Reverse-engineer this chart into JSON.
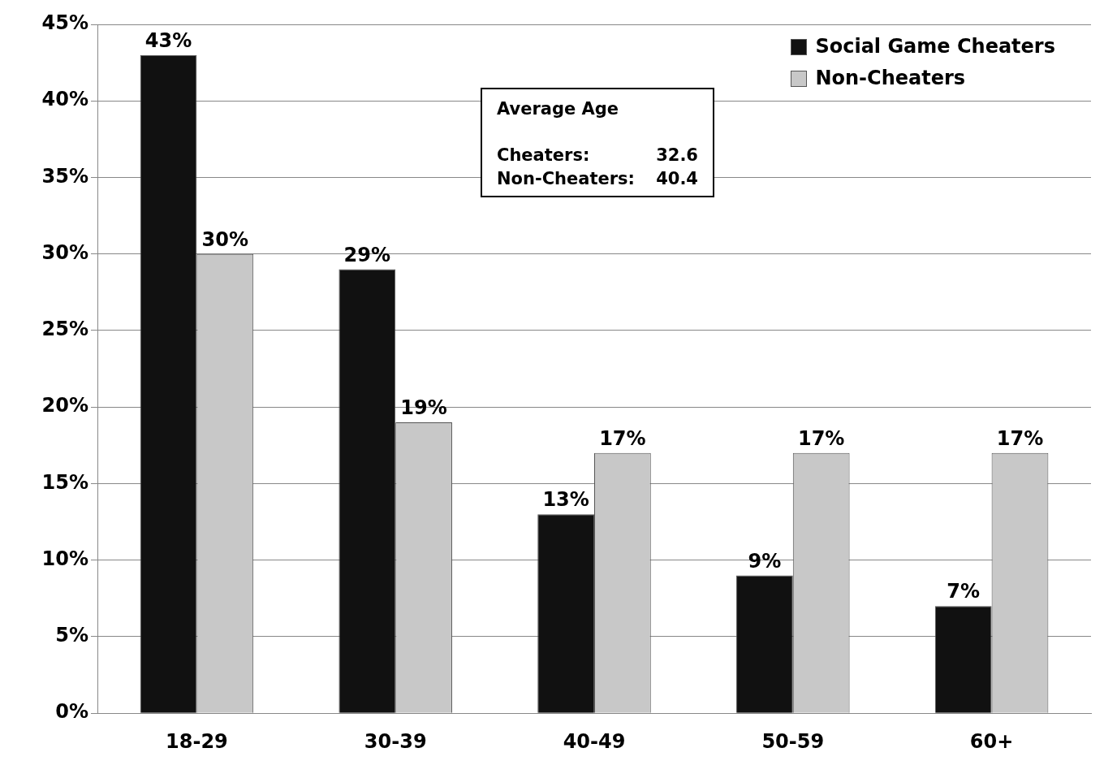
{
  "chart_data": {
    "type": "bar",
    "categories": [
      "18-29",
      "30-39",
      "40-49",
      "50-59",
      "60+"
    ],
    "series": [
      {
        "name": "Social Game Cheaters",
        "color": "#111111",
        "values": [
          43,
          29,
          13,
          9,
          7
        ],
        "value_labels": [
          "43%",
          "29%",
          "13%",
          "9%",
          "7%"
        ]
      },
      {
        "name": "Non-Cheaters",
        "color": "#c8c8c8",
        "values": [
          30,
          19,
          17,
          17,
          17
        ],
        "value_labels": [
          "30%",
          "19%",
          "17%",
          "17%",
          "17%"
        ]
      }
    ],
    "ylim": [
      0,
      45
    ],
    "yticks": [
      {
        "value": 0,
        "label": "0%"
      },
      {
        "value": 5,
        "label": "5%"
      },
      {
        "value": 10,
        "label": "10%"
      },
      {
        "value": 15,
        "label": "15%"
      },
      {
        "value": 20,
        "label": "20%"
      },
      {
        "value": 25,
        "label": "25%"
      },
      {
        "value": 30,
        "label": "30%"
      },
      {
        "value": 35,
        "label": "35%"
      },
      {
        "value": 40,
        "label": "40%"
      },
      {
        "value": 45,
        "label": "45%"
      }
    ],
    "grid": "y",
    "legend": "top right",
    "annotations": [
      "Average Age",
      "Cheaters:",
      "32.6",
      "Non-Cheaters:",
      "40.4"
    ]
  }
}
